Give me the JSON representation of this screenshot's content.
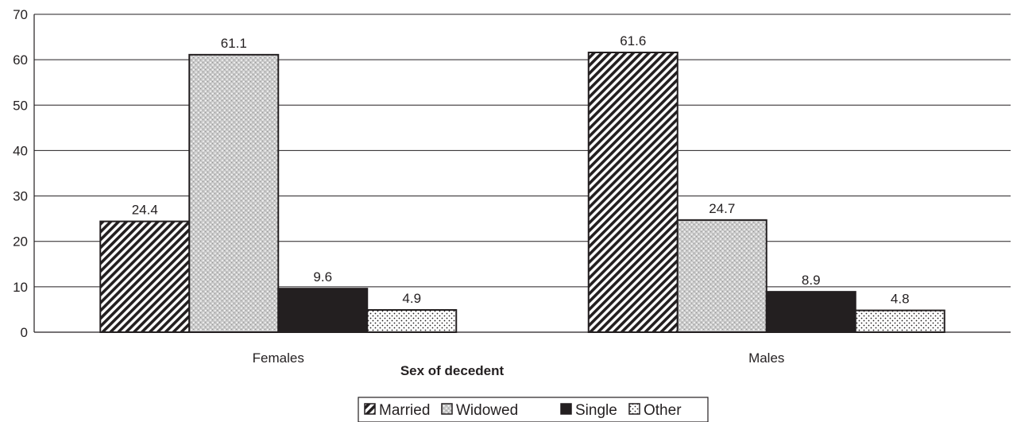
{
  "chart_data": {
    "type": "bar",
    "title": "",
    "xlabel": "Sex of decedent",
    "ylabel": "",
    "categories": [
      "Females",
      "Males"
    ],
    "series": [
      {
        "name": "Married",
        "values": [
          24.4,
          61.6
        ],
        "pattern": "diagonal-hatch"
      },
      {
        "name": "Widowed",
        "values": [
          61.1,
          24.7
        ],
        "pattern": "crosshatch-gray"
      },
      {
        "name": "Single",
        "values": [
          9.6,
          8.9
        ],
        "pattern": "solid-black"
      },
      {
        "name": "Other",
        "values": [
          4.9,
          4.8
        ],
        "pattern": "dots"
      }
    ],
    "ylim": [
      0,
      70
    ],
    "yticks": [
      0,
      10,
      20,
      30,
      40,
      50,
      60,
      70
    ],
    "grid": true,
    "legend": "bottom-center"
  },
  "colors": {
    "ink": "#231f20",
    "grid": "#231f20",
    "widowed_fill": "#c8c8c8",
    "single_fill": "#231f20"
  }
}
